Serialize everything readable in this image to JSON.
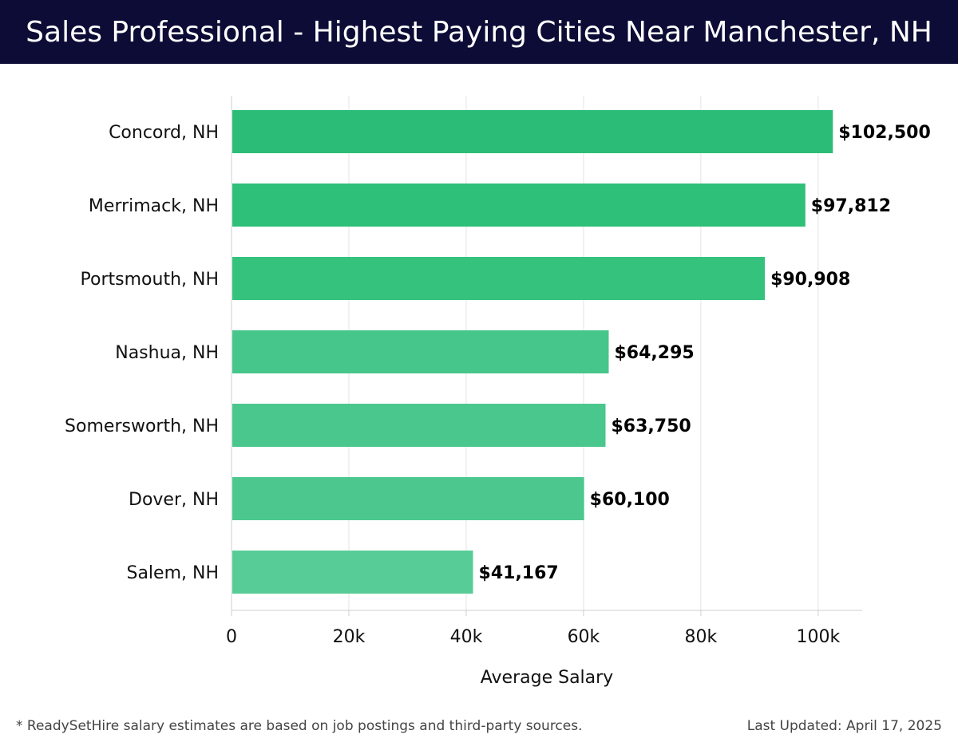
{
  "header": {
    "title": "Sales Professional - Highest Paying Cities Near Manchester, NH"
  },
  "footer": {
    "note": "* ReadySetHire salary estimates are based on job postings and third-party sources.",
    "updated": "Last Updated: April 17, 2025"
  },
  "chart_data": {
    "type": "bar",
    "orientation": "horizontal",
    "title": "Sales Professional - Highest Paying Cities Near Manchester, NH",
    "xlabel": "Average Salary",
    "ylabel": "",
    "categories": [
      "Concord, NH",
      "Merrimack, NH",
      "Portsmouth, NH",
      "Nashua, NH",
      "Somersworth, NH",
      "Dover, NH",
      "Salem, NH"
    ],
    "values": [
      102500,
      97812,
      90908,
      64295,
      63750,
      60100,
      41167
    ],
    "value_labels": [
      "$102,500",
      "$97,812",
      "$90,908",
      "$64,295",
      "$63,750",
      "$60,100",
      "$41,167"
    ],
    "bar_colors": [
      "#2bbd77",
      "#2ebf79",
      "#34c27d",
      "#47c68b",
      "#4ac78c",
      "#4cc88e",
      "#58cc97"
    ],
    "xlim": [
      0,
      107500
    ],
    "ticks": [
      0,
      20000,
      40000,
      60000,
      80000,
      100000
    ],
    "tick_labels": [
      "0",
      "20k",
      "40k",
      "60k",
      "80k",
      "100k"
    ],
    "grid": true,
    "legend": "none"
  }
}
